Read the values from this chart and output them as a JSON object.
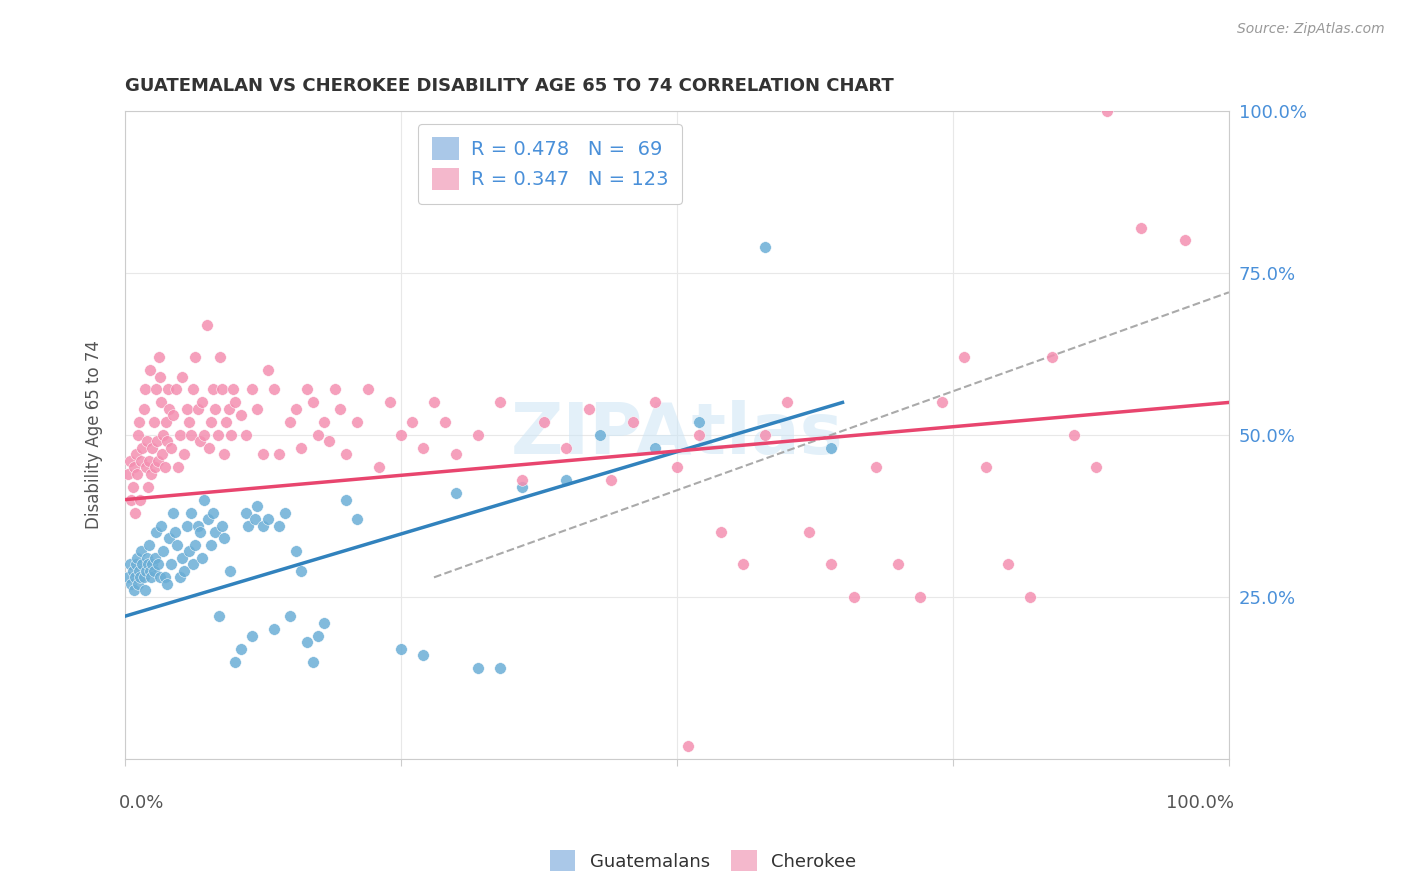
{
  "title": "GUATEMALAN VS CHEROKEE DISABILITY AGE 65 TO 74 CORRELATION CHART",
  "source": "Source: ZipAtlas.com",
  "ylabel": "Disability Age 65 to 74",
  "watermark": "ZIPAtlas",
  "guatemalan_color": "#6baed6",
  "cherokee_color": "#f48fb1",
  "trend_guatemalan_color": "#3182bd",
  "trend_cherokee_color": "#e8456e",
  "trend_dashed_color": "#aaaaaa",
  "background_color": "#ffffff",
  "grid_color": "#e8e8e8",
  "right_tick_color": "#4a90d9",
  "guatemalan_trend": [
    0.0,
    0.22,
    0.65,
    0.55
  ],
  "cherokee_trend": [
    0.0,
    0.4,
    1.0,
    0.55
  ],
  "dashed_line": [
    0.28,
    0.28,
    1.0,
    0.72
  ],
  "guatemalan_points": [
    [
      0.003,
      0.28
    ],
    [
      0.005,
      0.3
    ],
    [
      0.006,
      0.27
    ],
    [
      0.007,
      0.29
    ],
    [
      0.008,
      0.26
    ],
    [
      0.009,
      0.28
    ],
    [
      0.01,
      0.3
    ],
    [
      0.011,
      0.31
    ],
    [
      0.012,
      0.27
    ],
    [
      0.013,
      0.29
    ],
    [
      0.014,
      0.28
    ],
    [
      0.015,
      0.32
    ],
    [
      0.016,
      0.3
    ],
    [
      0.017,
      0.28
    ],
    [
      0.018,
      0.26
    ],
    [
      0.019,
      0.29
    ],
    [
      0.02,
      0.31
    ],
    [
      0.021,
      0.3
    ],
    [
      0.022,
      0.33
    ],
    [
      0.023,
      0.29
    ],
    [
      0.024,
      0.28
    ],
    [
      0.025,
      0.3
    ],
    [
      0.026,
      0.29
    ],
    [
      0.027,
      0.31
    ],
    [
      0.028,
      0.35
    ],
    [
      0.03,
      0.3
    ],
    [
      0.032,
      0.28
    ],
    [
      0.033,
      0.36
    ],
    [
      0.035,
      0.32
    ],
    [
      0.036,
      0.28
    ],
    [
      0.038,
      0.27
    ],
    [
      0.04,
      0.34
    ],
    [
      0.042,
      0.3
    ],
    [
      0.044,
      0.38
    ],
    [
      0.045,
      0.35
    ],
    [
      0.047,
      0.33
    ],
    [
      0.05,
      0.28
    ],
    [
      0.052,
      0.31
    ],
    [
      0.054,
      0.29
    ],
    [
      0.056,
      0.36
    ],
    [
      0.058,
      0.32
    ],
    [
      0.06,
      0.38
    ],
    [
      0.062,
      0.3
    ],
    [
      0.064,
      0.33
    ],
    [
      0.066,
      0.36
    ],
    [
      0.068,
      0.35
    ],
    [
      0.07,
      0.31
    ],
    [
      0.072,
      0.4
    ],
    [
      0.075,
      0.37
    ],
    [
      0.078,
      0.33
    ],
    [
      0.08,
      0.38
    ],
    [
      0.082,
      0.35
    ],
    [
      0.085,
      0.22
    ],
    [
      0.088,
      0.36
    ],
    [
      0.09,
      0.34
    ],
    [
      0.095,
      0.29
    ],
    [
      0.1,
      0.15
    ],
    [
      0.105,
      0.17
    ],
    [
      0.11,
      0.38
    ],
    [
      0.112,
      0.36
    ],
    [
      0.115,
      0.19
    ],
    [
      0.118,
      0.37
    ],
    [
      0.12,
      0.39
    ],
    [
      0.125,
      0.36
    ],
    [
      0.13,
      0.37
    ],
    [
      0.135,
      0.2
    ],
    [
      0.14,
      0.36
    ],
    [
      0.145,
      0.38
    ],
    [
      0.15,
      0.22
    ],
    [
      0.155,
      0.32
    ],
    [
      0.16,
      0.29
    ],
    [
      0.165,
      0.18
    ],
    [
      0.17,
      0.15
    ],
    [
      0.175,
      0.19
    ],
    [
      0.18,
      0.21
    ],
    [
      0.2,
      0.4
    ],
    [
      0.21,
      0.37
    ],
    [
      0.25,
      0.17
    ],
    [
      0.27,
      0.16
    ],
    [
      0.3,
      0.41
    ],
    [
      0.32,
      0.14
    ],
    [
      0.34,
      0.14
    ],
    [
      0.36,
      0.42
    ],
    [
      0.4,
      0.43
    ],
    [
      0.43,
      0.5
    ],
    [
      0.48,
      0.48
    ],
    [
      0.52,
      0.52
    ],
    [
      0.58,
      0.79
    ],
    [
      0.64,
      0.48
    ]
  ],
  "cherokee_points": [
    [
      0.003,
      0.44
    ],
    [
      0.005,
      0.46
    ],
    [
      0.006,
      0.4
    ],
    [
      0.007,
      0.42
    ],
    [
      0.008,
      0.45
    ],
    [
      0.009,
      0.38
    ],
    [
      0.01,
      0.47
    ],
    [
      0.011,
      0.44
    ],
    [
      0.012,
      0.5
    ],
    [
      0.013,
      0.52
    ],
    [
      0.014,
      0.4
    ],
    [
      0.015,
      0.46
    ],
    [
      0.016,
      0.48
    ],
    [
      0.017,
      0.54
    ],
    [
      0.018,
      0.57
    ],
    [
      0.019,
      0.45
    ],
    [
      0.02,
      0.49
    ],
    [
      0.021,
      0.42
    ],
    [
      0.022,
      0.46
    ],
    [
      0.023,
      0.6
    ],
    [
      0.024,
      0.44
    ],
    [
      0.025,
      0.48
    ],
    [
      0.026,
      0.52
    ],
    [
      0.027,
      0.45
    ],
    [
      0.028,
      0.57
    ],
    [
      0.029,
      0.49
    ],
    [
      0.03,
      0.46
    ],
    [
      0.031,
      0.62
    ],
    [
      0.032,
      0.59
    ],
    [
      0.033,
      0.55
    ],
    [
      0.034,
      0.47
    ],
    [
      0.035,
      0.5
    ],
    [
      0.036,
      0.45
    ],
    [
      0.037,
      0.52
    ],
    [
      0.038,
      0.49
    ],
    [
      0.039,
      0.57
    ],
    [
      0.04,
      0.54
    ],
    [
      0.042,
      0.48
    ],
    [
      0.044,
      0.53
    ],
    [
      0.046,
      0.57
    ],
    [
      0.048,
      0.45
    ],
    [
      0.05,
      0.5
    ],
    [
      0.052,
      0.59
    ],
    [
      0.054,
      0.47
    ],
    [
      0.056,
      0.54
    ],
    [
      0.058,
      0.52
    ],
    [
      0.06,
      0.5
    ],
    [
      0.062,
      0.57
    ],
    [
      0.064,
      0.62
    ],
    [
      0.066,
      0.54
    ],
    [
      0.068,
      0.49
    ],
    [
      0.07,
      0.55
    ],
    [
      0.072,
      0.5
    ],
    [
      0.074,
      0.67
    ],
    [
      0.076,
      0.48
    ],
    [
      0.078,
      0.52
    ],
    [
      0.08,
      0.57
    ],
    [
      0.082,
      0.54
    ],
    [
      0.084,
      0.5
    ],
    [
      0.086,
      0.62
    ],
    [
      0.088,
      0.57
    ],
    [
      0.09,
      0.47
    ],
    [
      0.092,
      0.52
    ],
    [
      0.094,
      0.54
    ],
    [
      0.096,
      0.5
    ],
    [
      0.098,
      0.57
    ],
    [
      0.1,
      0.55
    ],
    [
      0.105,
      0.53
    ],
    [
      0.11,
      0.5
    ],
    [
      0.115,
      0.57
    ],
    [
      0.12,
      0.54
    ],
    [
      0.125,
      0.47
    ],
    [
      0.13,
      0.6
    ],
    [
      0.135,
      0.57
    ],
    [
      0.14,
      0.47
    ],
    [
      0.15,
      0.52
    ],
    [
      0.155,
      0.54
    ],
    [
      0.16,
      0.48
    ],
    [
      0.165,
      0.57
    ],
    [
      0.17,
      0.55
    ],
    [
      0.175,
      0.5
    ],
    [
      0.18,
      0.52
    ],
    [
      0.185,
      0.49
    ],
    [
      0.19,
      0.57
    ],
    [
      0.195,
      0.54
    ],
    [
      0.2,
      0.47
    ],
    [
      0.21,
      0.52
    ],
    [
      0.22,
      0.57
    ],
    [
      0.23,
      0.45
    ],
    [
      0.24,
      0.55
    ],
    [
      0.25,
      0.5
    ],
    [
      0.26,
      0.52
    ],
    [
      0.27,
      0.48
    ],
    [
      0.28,
      0.55
    ],
    [
      0.29,
      0.52
    ],
    [
      0.3,
      0.47
    ],
    [
      0.32,
      0.5
    ],
    [
      0.34,
      0.55
    ],
    [
      0.36,
      0.43
    ],
    [
      0.38,
      0.52
    ],
    [
      0.4,
      0.48
    ],
    [
      0.42,
      0.54
    ],
    [
      0.44,
      0.43
    ],
    [
      0.46,
      0.52
    ],
    [
      0.48,
      0.55
    ],
    [
      0.5,
      0.45
    ],
    [
      0.51,
      0.02
    ],
    [
      0.52,
      0.5
    ],
    [
      0.54,
      0.35
    ],
    [
      0.56,
      0.3
    ],
    [
      0.58,
      0.5
    ],
    [
      0.6,
      0.55
    ],
    [
      0.62,
      0.35
    ],
    [
      0.64,
      0.3
    ],
    [
      0.66,
      0.25
    ],
    [
      0.68,
      0.45
    ],
    [
      0.7,
      0.3
    ],
    [
      0.72,
      0.25
    ],
    [
      0.74,
      0.55
    ],
    [
      0.76,
      0.62
    ],
    [
      0.78,
      0.45
    ],
    [
      0.8,
      0.3
    ],
    [
      0.82,
      0.25
    ],
    [
      0.84,
      0.62
    ],
    [
      0.86,
      0.5
    ],
    [
      0.88,
      0.45
    ],
    [
      0.89,
      1.0
    ],
    [
      0.92,
      0.82
    ],
    [
      0.96,
      0.8
    ]
  ]
}
